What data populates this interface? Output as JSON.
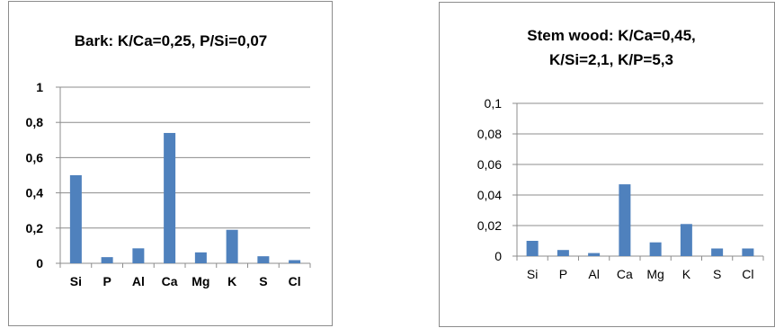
{
  "chart_data": [
    {
      "type": "bar",
      "title": [
        "Bark: K/Ca=0,25, P/Si=0,07"
      ],
      "categories": [
        "Si",
        "P",
        "Al",
        "Ca",
        "Mg",
        "K",
        "S",
        "Cl"
      ],
      "values": [
        0.5,
        0.035,
        0.085,
        0.74,
        0.062,
        0.19,
        0.04,
        0.018
      ],
      "yticks": [
        "0",
        "0,2",
        "0,4",
        "0,6",
        "0,8",
        "1"
      ],
      "ylim": [
        0,
        1
      ],
      "xlabel": "",
      "ylabel": "",
      "grid": true,
      "bold_labels": true,
      "bar_color": "#4f81bd"
    },
    {
      "type": "bar",
      "title": [
        "Stem wood: K/Ca=0,45,",
        "K/Si=2,1, K/P=5,3"
      ],
      "categories": [
        "Si",
        "P",
        "Al",
        "Ca",
        "Mg",
        "K",
        "S",
        "Cl"
      ],
      "values": [
        0.01,
        0.004,
        0.002,
        0.047,
        0.009,
        0.021,
        0.005,
        0.005
      ],
      "yticks": [
        "0",
        "0,02",
        "0,04",
        "0,06",
        "0,08",
        "0,1"
      ],
      "ylim": [
        0,
        0.1
      ],
      "xlabel": "",
      "ylabel": "",
      "grid": true,
      "bold_labels": false,
      "bar_color": "#4f81bd"
    }
  ]
}
